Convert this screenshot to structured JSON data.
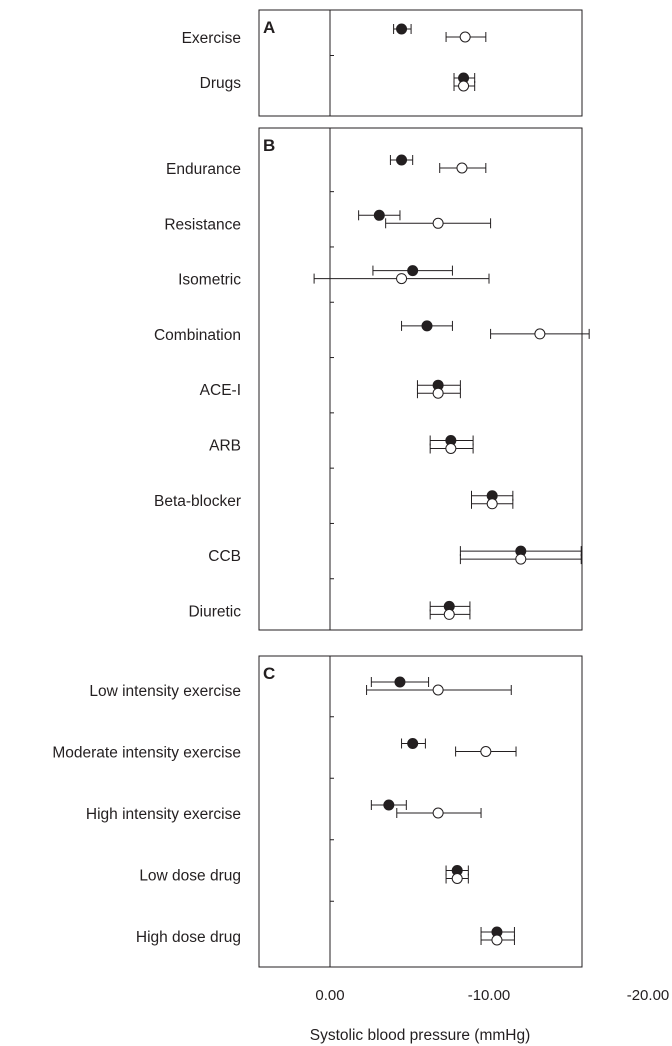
{
  "chart_data": {
    "type": "forest",
    "xlabel": "Systolic blood pressure (mmHg)",
    "xlim": [
      0.0,
      -20.0
    ],
    "xticks": [
      "0.00",
      "-10.00",
      "-20.00"
    ],
    "tick_values": [
      0,
      -10,
      -20
    ],
    "legend": "none",
    "grid": false,
    "marker_styles": [
      "filled",
      "open"
    ],
    "colors": {
      "ink": "#231f20",
      "open_fill": "#ffffff"
    },
    "panels": [
      {
        "letter": "A",
        "rows": [
          {
            "label": "Exercise",
            "filled": {
              "value": -4.5,
              "ci": [
                -4.0,
                -5.1
              ]
            },
            "open": {
              "value": -8.5,
              "ci": [
                -7.3,
                -9.8
              ]
            }
          },
          {
            "label": "Drugs",
            "filled": {
              "value": -8.4,
              "ci": [
                -7.8,
                -9.1
              ]
            },
            "open": {
              "value": -8.4,
              "ci": [
                -7.8,
                -9.1
              ]
            }
          }
        ]
      },
      {
        "letter": "B",
        "rows": [
          {
            "label": "Endurance",
            "filled": {
              "value": -4.5,
              "ci": [
                -3.8,
                -5.2
              ]
            },
            "open": {
              "value": -8.3,
              "ci": [
                -6.9,
                -9.8
              ]
            }
          },
          {
            "label": "Resistance",
            "filled": {
              "value": -3.1,
              "ci": [
                -1.8,
                -4.4
              ]
            },
            "open": {
              "value": -6.8,
              "ci": [
                -3.5,
                -10.1
              ]
            }
          },
          {
            "label": "Isometric",
            "filled": {
              "value": -5.2,
              "ci": [
                -2.7,
                -7.7
              ]
            },
            "open": {
              "value": -4.5,
              "ci": [
                1.0,
                -10.0
              ]
            }
          },
          {
            "label": "Combination",
            "filled": {
              "value": -6.1,
              "ci": [
                -4.5,
                -7.7
              ]
            },
            "open": {
              "value": -13.2,
              "ci": [
                -10.1,
                -16.3
              ]
            }
          },
          {
            "label": "ACE-I",
            "filled": {
              "value": -6.8,
              "ci": [
                -5.5,
                -8.2
              ]
            },
            "open": {
              "value": -6.8,
              "ci": [
                -5.5,
                -8.2
              ]
            }
          },
          {
            "label": "ARB",
            "filled": {
              "value": -7.6,
              "ci": [
                -6.3,
                -9.0
              ]
            },
            "open": {
              "value": -7.6,
              "ci": [
                -6.3,
                -9.0
              ]
            }
          },
          {
            "label": "Beta-blocker",
            "filled": {
              "value": -10.2,
              "ci": [
                -8.9,
                -11.5
              ]
            },
            "open": {
              "value": -10.2,
              "ci": [
                -8.9,
                -11.5
              ]
            }
          },
          {
            "label": "CCB",
            "filled": {
              "value": -12.0,
              "ci": [
                -8.2,
                -15.8
              ]
            },
            "open": {
              "value": -12.0,
              "ci": [
                -8.2,
                -15.8
              ]
            }
          },
          {
            "label": "Diuretic",
            "filled": {
              "value": -7.5,
              "ci": [
                -6.3,
                -8.8
              ]
            },
            "open": {
              "value": -7.5,
              "ci": [
                -6.3,
                -8.8
              ]
            }
          }
        ]
      },
      {
        "letter": "C",
        "rows": [
          {
            "label": "Low intensity exercise",
            "filled": {
              "value": -4.4,
              "ci": [
                -2.6,
                -6.2
              ]
            },
            "open": {
              "value": -6.8,
              "ci": [
                -2.3,
                -11.4
              ]
            }
          },
          {
            "label": "Moderate intensity exercise",
            "filled": {
              "value": -5.2,
              "ci": [
                -4.5,
                -6.0
              ]
            },
            "open": {
              "value": -9.8,
              "ci": [
                -7.9,
                -11.7
              ]
            }
          },
          {
            "label": "High intensity exercise",
            "filled": {
              "value": -3.7,
              "ci": [
                -2.6,
                -4.8
              ]
            },
            "open": {
              "value": -6.8,
              "ci": [
                -4.2,
                -9.5
              ]
            }
          },
          {
            "label": "Low dose drug",
            "filled": {
              "value": -8.0,
              "ci": [
                -7.3,
                -8.7
              ]
            },
            "open": {
              "value": -8.0,
              "ci": [
                -7.3,
                -8.7
              ]
            }
          },
          {
            "label": "High dose drug",
            "filled": {
              "value": -10.5,
              "ci": [
                -9.5,
                -11.6
              ]
            },
            "open": {
              "value": -10.5,
              "ci": [
                -9.5,
                -11.6
              ]
            }
          }
        ]
      }
    ]
  }
}
